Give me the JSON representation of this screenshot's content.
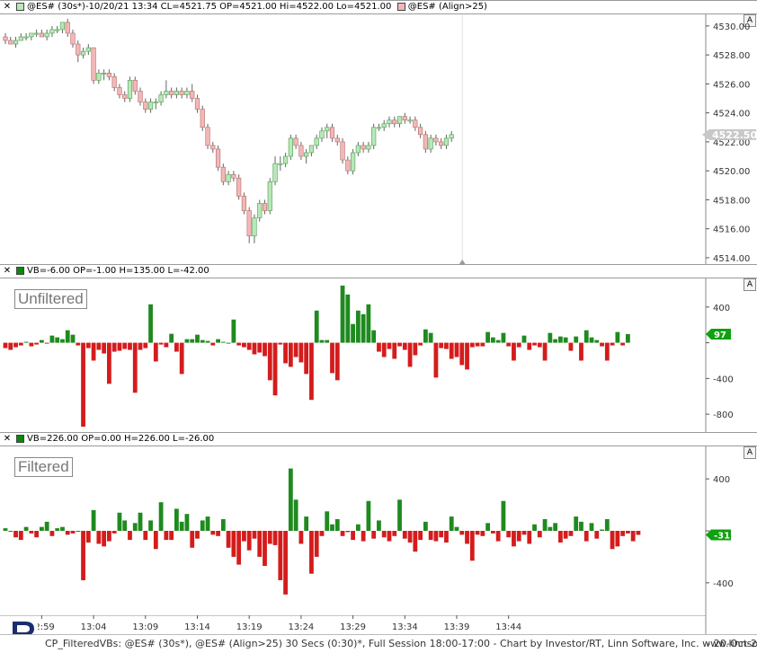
{
  "price_pane": {
    "header_left": "@ES# (30s*)-10/20/21 13:34 CL=4521.75 OP=4521.00 Hi=4522.00 Lo=4521.00",
    "header_right": "@ES# (Align>25)",
    "auto_label": "A",
    "last_price": "4522.50",
    "colors": {
      "up": "#b8e8b8",
      "down": "#f2b8b8",
      "up_edge": "#4e9c4e",
      "down_edge": "#b36a6a"
    }
  },
  "unfiltered_pane": {
    "header": "VB=-6.00 OP=-1.00 H=135.00 L=-42.00",
    "label": "Unfiltered",
    "auto_label": "A",
    "current_value": "97"
  },
  "filtered_pane": {
    "header": "VB=226.00 OP=0.00 H=226.00 L=-26.00",
    "label": "Filtered",
    "auto_label": "A",
    "current_value": "-31"
  },
  "time_axis": {
    "ticks": [
      "12:59",
      "13:04",
      "13:09",
      "13:14",
      "13:19",
      "13:24",
      "13:29",
      "13:34",
      "13:39",
      "13:44"
    ]
  },
  "footer": {
    "text": "CP_FilteredVBs: @ES# (30s*), @ES# (Align>25) 30 Secs (0:30)*, Full Session 18:00-17:00 - Chart by Investor/RT, Linn Software, Inc. www.linnsoft.com",
    "date": "- 20-Oct-2"
  },
  "chart_data": [
    {
      "type": "candlestick",
      "title": "@ES# (30s*)",
      "y_ticks": [
        4514,
        4516,
        4518,
        4520,
        4522,
        4524,
        4526,
        4528,
        4530
      ],
      "y_tick_labels": [
        "4514.00",
        "4516.00",
        "4518.00",
        "4520.00",
        "4522.00",
        "4524.00",
        "4526.00",
        "4528.00",
        "4530.00"
      ],
      "ylim": [
        4513.5,
        4530.8
      ],
      "x_start": "12:55:30",
      "bar_interval_seconds": 30,
      "ohlc": [
        [
          4529.25,
          4529.5,
          4528.75,
          4529.0
        ],
        [
          4529.0,
          4529.25,
          4528.75,
          4528.75
        ],
        [
          4528.75,
          4529.25,
          4528.5,
          4529.0
        ],
        [
          4529.0,
          4529.5,
          4529.0,
          4529.25
        ],
        [
          4529.25,
          4529.5,
          4529.0,
          4529.25
        ],
        [
          4529.25,
          4529.5,
          4529.0,
          4529.5
        ],
        [
          4529.5,
          4529.75,
          4529.25,
          4529.5
        ],
        [
          4529.5,
          4529.75,
          4529.25,
          4529.25
        ],
        [
          4529.25,
          4529.75,
          4529.0,
          4529.5
        ],
        [
          4529.5,
          4530.0,
          4529.25,
          4529.75
        ],
        [
          4529.75,
          4530.0,
          4529.5,
          4529.75
        ],
        [
          4529.75,
          4530.25,
          4529.5,
          4530.25
        ],
        [
          4530.25,
          4530.5,
          4529.25,
          4529.5
        ],
        [
          4529.5,
          4529.75,
          4528.5,
          4528.75
        ],
        [
          4528.75,
          4529.0,
          4527.5,
          4528.0
        ],
        [
          4528.0,
          4528.5,
          4527.75,
          4528.25
        ],
        [
          4528.25,
          4528.75,
          4528.0,
          4528.5
        ],
        [
          4528.5,
          4528.5,
          4526.0,
          4526.25
        ],
        [
          4526.25,
          4527.0,
          4526.0,
          4526.75
        ],
        [
          4526.75,
          4527.0,
          4526.25,
          4526.75
        ],
        [
          4526.75,
          4527.0,
          4526.25,
          4526.5
        ],
        [
          4526.5,
          4526.75,
          4525.5,
          4525.75
        ],
        [
          4525.75,
          4526.0,
          4525.0,
          4525.25
        ],
        [
          4525.25,
          4525.5,
          4524.75,
          4525.0
        ],
        [
          4525.0,
          4526.5,
          4524.75,
          4526.25
        ],
        [
          4526.25,
          4526.5,
          4525.25,
          4525.5
        ],
        [
          4525.5,
          4525.75,
          4524.5,
          4524.75
        ],
        [
          4524.75,
          4525.0,
          4524.0,
          4524.25
        ],
        [
          4524.25,
          4525.0,
          4524.0,
          4524.75
        ],
        [
          4524.75,
          4525.0,
          4524.25,
          4524.75
        ],
        [
          4524.75,
          4525.5,
          4524.5,
          4525.25
        ],
        [
          4525.25,
          4526.25,
          4525.0,
          4525.5
        ],
        [
          4525.5,
          4525.75,
          4525.0,
          4525.25
        ],
        [
          4525.25,
          4525.75,
          4525.0,
          4525.5
        ],
        [
          4525.5,
          4525.75,
          4525.0,
          4525.25
        ],
        [
          4525.25,
          4525.75,
          4525.0,
          4525.5
        ],
        [
          4525.5,
          4526.0,
          4524.75,
          4525.0
        ],
        [
          4525.0,
          4525.25,
          4524.0,
          4524.25
        ],
        [
          4524.25,
          4524.5,
          4522.75,
          4523.0
        ],
        [
          4523.0,
          4523.25,
          4521.5,
          4521.75
        ],
        [
          4521.75,
          4522.0,
          4521.25,
          4521.5
        ],
        [
          4521.5,
          4521.75,
          4520.0,
          4520.25
        ],
        [
          4520.25,
          4520.5,
          4519.0,
          4519.25
        ],
        [
          4519.25,
          4520.0,
          4519.0,
          4519.75
        ],
        [
          4519.75,
          4520.0,
          4519.25,
          4519.5
        ],
        [
          4519.5,
          4519.75,
          4518.0,
          4518.25
        ],
        [
          4518.25,
          4518.5,
          4517.0,
          4517.25
        ],
        [
          4517.25,
          4517.5,
          4515.0,
          4515.5
        ],
        [
          4515.5,
          4517.0,
          4515.0,
          4516.75
        ],
        [
          4516.75,
          4518.0,
          4516.5,
          4517.75
        ],
        [
          4517.75,
          4518.0,
          4517.0,
          4517.25
        ],
        [
          4517.25,
          4519.5,
          4517.0,
          4519.25
        ],
        [
          4519.25,
          4521.0,
          4519.0,
          4520.5
        ],
        [
          4520.5,
          4521.0,
          4520.0,
          4520.5
        ],
        [
          4520.5,
          4521.25,
          4520.25,
          4521.0
        ],
        [
          4521.0,
          4522.5,
          4520.75,
          4522.25
        ],
        [
          4522.25,
          4522.5,
          4521.5,
          4521.75
        ],
        [
          4521.75,
          4522.0,
          4520.75,
          4521.0
        ],
        [
          4521.0,
          4521.5,
          4520.5,
          4521.25
        ],
        [
          4521.25,
          4521.75,
          4521.0,
          4521.75
        ],
        [
          4521.75,
          4522.5,
          4521.5,
          4522.25
        ],
        [
          4522.25,
          4523.0,
          4522.0,
          4522.75
        ],
        [
          4522.75,
          4523.25,
          4522.25,
          4523.0
        ],
        [
          4523.0,
          4523.25,
          4522.0,
          4522.25
        ],
        [
          4522.25,
          4522.5,
          4521.75,
          4522.0
        ],
        [
          4522.0,
          4522.25,
          4520.5,
          4520.75
        ],
        [
          4520.75,
          4521.0,
          4519.75,
          4520.0
        ],
        [
          4520.0,
          4521.5,
          4519.75,
          4521.25
        ],
        [
          4521.25,
          4522.0,
          4521.0,
          4521.75
        ],
        [
          4521.75,
          4522.0,
          4521.25,
          4521.5
        ],
        [
          4521.5,
          4522.0,
          4521.25,
          4521.75
        ],
        [
          4521.75,
          4523.25,
          4521.5,
          4523.0
        ],
        [
          4523.0,
          4523.25,
          4522.75,
          4523.0
        ],
        [
          4523.0,
          4523.5,
          4522.75,
          4523.25
        ],
        [
          4523.25,
          4523.75,
          4523.0,
          4523.5
        ],
        [
          4523.5,
          4523.75,
          4523.0,
          4523.25
        ],
        [
          4523.25,
          4523.75,
          4523.0,
          4523.75
        ],
        [
          4523.75,
          4524.0,
          4523.25,
          4523.5
        ],
        [
          4523.5,
          4523.75,
          4523.25,
          4523.5
        ],
        [
          4523.5,
          4523.75,
          4522.75,
          4523.0
        ],
        [
          4523.0,
          4523.25,
          4522.25,
          4522.5
        ],
        [
          4522.5,
          4522.75,
          4521.25,
          4521.5
        ],
        [
          4521.5,
          4522.5,
          4521.25,
          4522.25
        ],
        [
          4522.25,
          4522.5,
          4521.75,
          4522.0
        ],
        [
          4522.0,
          4522.25,
          4521.5,
          4521.75
        ],
        [
          4521.75,
          4522.5,
          4521.5,
          4522.25
        ],
        [
          4522.25,
          4522.75,
          4522.0,
          4522.5
        ]
      ]
    },
    {
      "type": "bar",
      "title": "Unfiltered",
      "y_ticks": [
        400,
        0,
        -400,
        -800
      ],
      "y_tick_labels": [
        "400",
        "",
        "-400",
        "-800"
      ],
      "ylim": [
        -1000,
        720
      ],
      "values": [
        -60,
        -80,
        -50,
        -30,
        10,
        -40,
        -20,
        30,
        -10,
        80,
        60,
        40,
        140,
        90,
        -30,
        -940,
        -60,
        -200,
        -80,
        -120,
        -460,
        -100,
        -90,
        -70,
        -80,
        -560,
        -80,
        -60,
        430,
        -210,
        -20,
        -50,
        100,
        -100,
        -350,
        40,
        40,
        90,
        30,
        20,
        -30,
        40,
        10,
        0,
        260,
        -30,
        -50,
        -80,
        -130,
        -110,
        -150,
        -420,
        -590,
        -20,
        -230,
        -270,
        -160,
        -220,
        -350,
        -640,
        360,
        30,
        30,
        -340,
        -420,
        640,
        540,
        210,
        360,
        320,
        430,
        140,
        -100,
        -160,
        -70,
        -180,
        -40,
        -80,
        -270,
        -140,
        -30,
        150,
        110,
        -390,
        -60,
        -70,
        -180,
        -160,
        -250,
        -300,
        -50,
        -40,
        -40,
        120,
        60,
        30,
        110,
        -40,
        -200,
        -50,
        80,
        -80,
        -30,
        -50,
        -200,
        110,
        40,
        70,
        60,
        -90,
        70,
        -200,
        140,
        60,
        30,
        -40,
        -200,
        -30,
        120,
        -30,
        97
      ]
    },
    {
      "type": "bar",
      "title": "Filtered",
      "y_ticks": [
        400,
        0,
        -400
      ],
      "y_tick_labels": [
        "400",
        "",
        "-400"
      ],
      "ylim": [
        -650,
        650
      ],
      "values": [
        20,
        0,
        -50,
        -70,
        30,
        -20,
        -50,
        30,
        70,
        -40,
        20,
        30,
        -30,
        -20,
        0,
        -380,
        -90,
        160,
        -100,
        -120,
        -80,
        -20,
        140,
        80,
        -70,
        60,
        140,
        -70,
        80,
        -140,
        220,
        -70,
        -70,
        170,
        70,
        130,
        -130,
        -60,
        80,
        110,
        -30,
        -40,
        90,
        -130,
        -200,
        -260,
        -80,
        -150,
        -60,
        -200,
        -270,
        -100,
        -110,
        -380,
        -490,
        480,
        240,
        -100,
        110,
        -330,
        -200,
        -40,
        150,
        50,
        90,
        -40,
        -10,
        -70,
        50,
        -80,
        230,
        -60,
        80,
        -50,
        -80,
        -40,
        240,
        -60,
        -90,
        -160,
        -70,
        70,
        -70,
        -80,
        -50,
        -90,
        110,
        30,
        -30,
        -100,
        -230,
        -30,
        -40,
        60,
        -20,
        -80,
        230,
        -50,
        -120,
        -80,
        -30,
        -100,
        50,
        -50,
        90,
        30,
        60,
        -90,
        -60,
        -40,
        110,
        70,
        -80,
        60,
        -60,
        10,
        90,
        -140,
        -120,
        -40,
        -20,
        -80,
        -31
      ]
    }
  ]
}
